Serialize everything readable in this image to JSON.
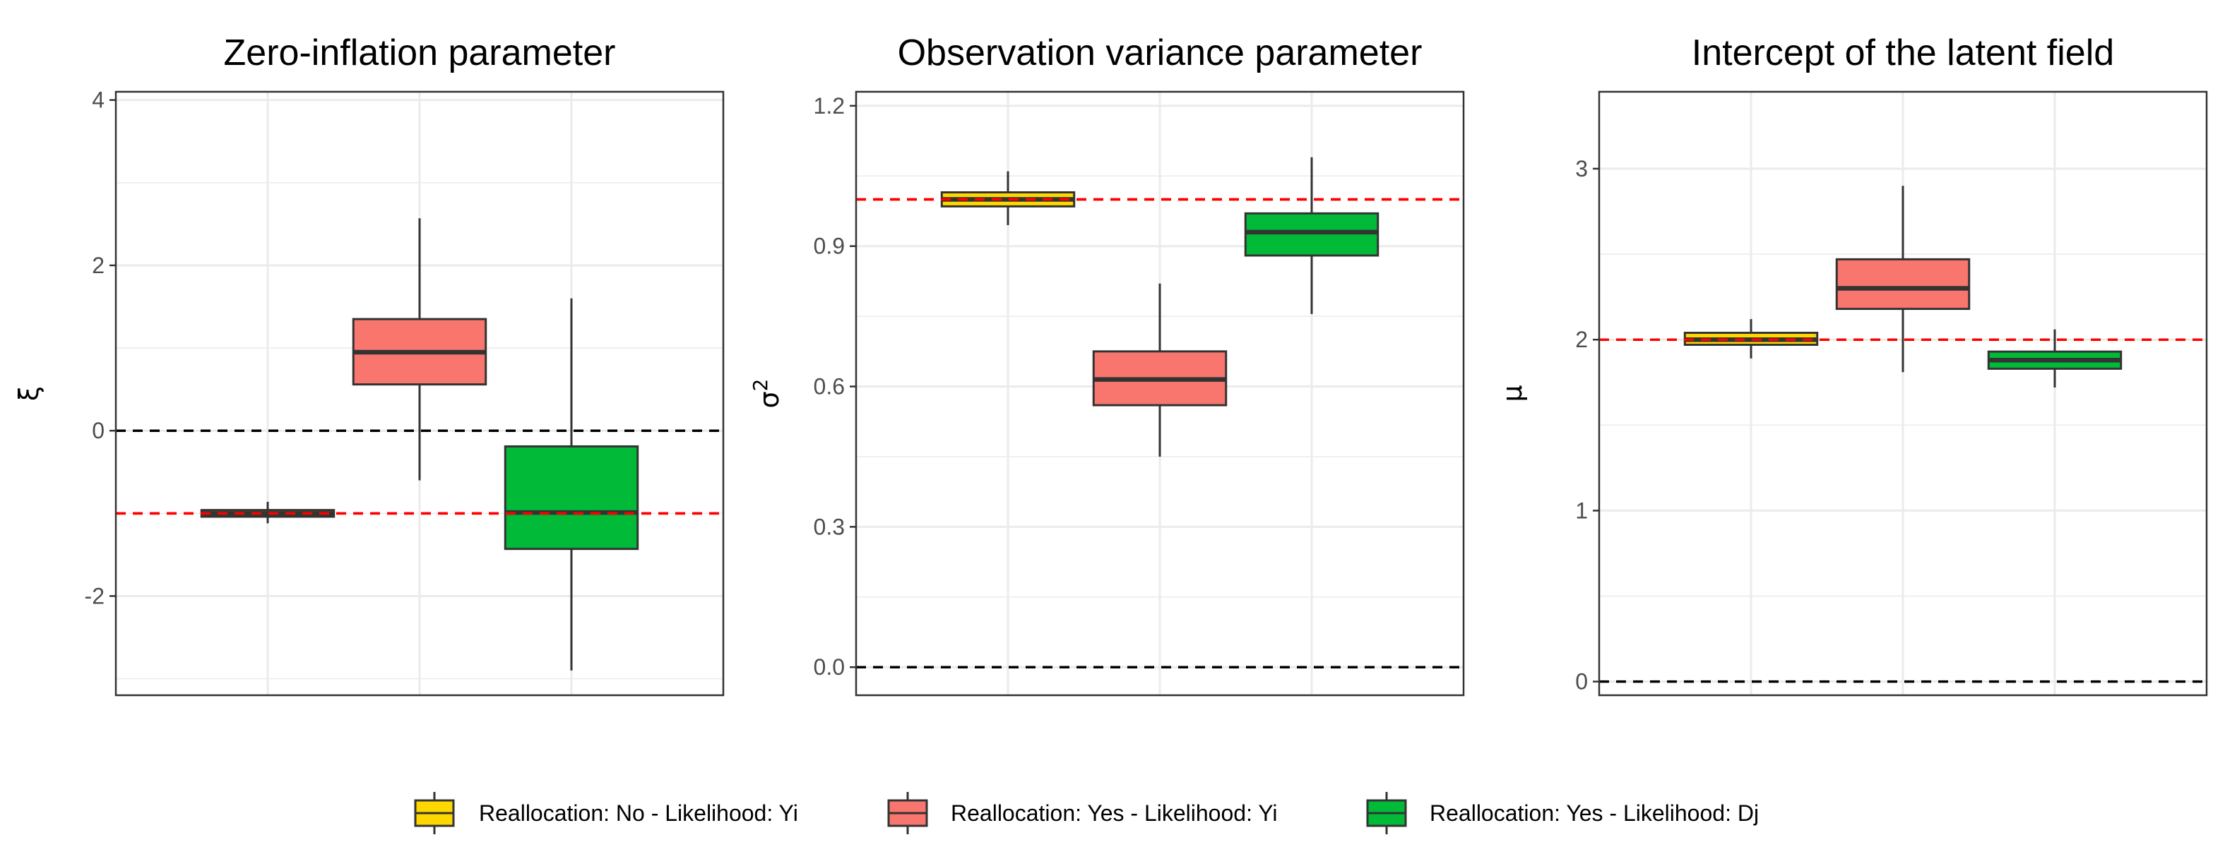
{
  "chart_data": [
    {
      "type": "box",
      "title": "Zero-inflation parameter",
      "ylabel": "ξ",
      "ylim": [
        -3.2,
        4.1
      ],
      "yticks": [
        -2,
        0,
        2,
        4
      ],
      "ytick_labels": [
        "-2",
        "0",
        "2",
        "4"
      ],
      "grid": true,
      "reference_lines": [
        {
          "y": 0,
          "color": "#000000",
          "style": "dashed"
        },
        {
          "y": -1,
          "color": "#ff0000",
          "style": "dashed"
        }
      ],
      "boxes": [
        {
          "series": "Reallocation: No -  Likelihood: Yi",
          "min": -1.12,
          "q1": -1.04,
          "median": -1.0,
          "q3": -0.96,
          "max": -0.86
        },
        {
          "series": "Reallocation: Yes -  Likelihood: Yi",
          "min": -0.6,
          "q1": 0.56,
          "median": 0.95,
          "q3": 1.35,
          "max": 2.57
        },
        {
          "series": "Reallocation: Yes -  Likelihood: Dj",
          "min": -2.9,
          "q1": -1.43,
          "median": -0.99,
          "q3": -0.19,
          "max": 1.6
        }
      ]
    },
    {
      "type": "box",
      "title": "Observation variance parameter",
      "ylabel": "σ",
      "ylabel_superscript": "2",
      "ylim": [
        -0.06,
        1.23
      ],
      "yticks": [
        0,
        0.3,
        0.6,
        0.9,
        1.2
      ],
      "ytick_labels": [
        "0.0",
        "0.3",
        "0.6",
        "0.9",
        "1.2"
      ],
      "grid": true,
      "reference_lines": [
        {
          "y": 0,
          "color": "#000000",
          "style": "dashed"
        },
        {
          "y": 1,
          "color": "#ff0000",
          "style": "dashed"
        }
      ],
      "boxes": [
        {
          "series": "Reallocation: No -  Likelihood: Yi",
          "min": 0.945,
          "q1": 0.985,
          "median": 1.0,
          "q3": 1.015,
          "max": 1.06
        },
        {
          "series": "Reallocation: Yes -  Likelihood: Yi",
          "min": 0.45,
          "q1": 0.56,
          "median": 0.615,
          "q3": 0.675,
          "max": 0.82
        },
        {
          "series": "Reallocation: Yes -  Likelihood: Dj",
          "min": 0.755,
          "q1": 0.88,
          "median": 0.93,
          "q3": 0.97,
          "max": 1.09
        }
      ]
    },
    {
      "type": "box",
      "title": "Intercept of the latent field",
      "ylabel": "μ",
      "ylim": [
        -0.08,
        3.45
      ],
      "yticks": [
        0,
        1,
        2,
        3
      ],
      "ytick_labels": [
        "0",
        "1",
        "2",
        "3"
      ],
      "grid": true,
      "reference_lines": [
        {
          "y": 0,
          "color": "#000000",
          "style": "dashed"
        },
        {
          "y": 2,
          "color": "#ff0000",
          "style": "dashed"
        }
      ],
      "boxes": [
        {
          "series": "Reallocation: No -  Likelihood: Yi",
          "min": 1.89,
          "q1": 1.97,
          "median": 2.0,
          "q3": 2.04,
          "max": 2.12
        },
        {
          "series": "Reallocation: Yes -  Likelihood: Yi",
          "min": 1.81,
          "q1": 2.18,
          "median": 2.3,
          "q3": 2.47,
          "max": 2.9
        },
        {
          "series": "Reallocation: Yes -  Likelihood: Dj",
          "min": 1.72,
          "q1": 1.83,
          "median": 1.88,
          "q3": 1.93,
          "max": 2.06
        }
      ]
    }
  ],
  "legend": {
    "position": "bottom",
    "items": [
      {
        "label": "Reallocation: No -  Likelihood: Yi",
        "color": "#ffd700"
      },
      {
        "label": "Reallocation: Yes -  Likelihood: Yi",
        "color": "#f8766d"
      },
      {
        "label": "Reallocation: Yes -  Likelihood: Dj",
        "color": "#00ba38"
      }
    ]
  },
  "colors": {
    "grid": "#ebebeb",
    "panel_border": "#333333",
    "box_outline": "#333333",
    "median_line": "#333333"
  }
}
